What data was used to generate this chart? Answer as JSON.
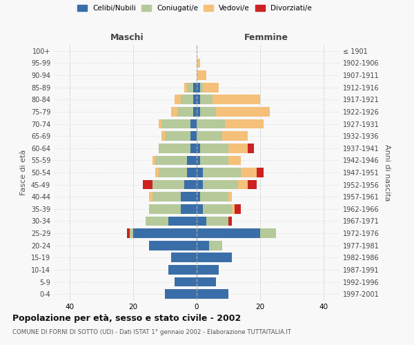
{
  "age_groups": [
    "0-4",
    "5-9",
    "10-14",
    "15-19",
    "20-24",
    "25-29",
    "30-34",
    "35-39",
    "40-44",
    "45-49",
    "50-54",
    "55-59",
    "60-64",
    "65-69",
    "70-74",
    "75-79",
    "80-84",
    "85-89",
    "90-94",
    "95-99",
    "100+"
  ],
  "birth_years": [
    "1997-2001",
    "1992-1996",
    "1987-1991",
    "1982-1986",
    "1977-1981",
    "1972-1976",
    "1967-1971",
    "1962-1966",
    "1957-1961",
    "1952-1956",
    "1947-1951",
    "1942-1946",
    "1937-1941",
    "1932-1936",
    "1927-1931",
    "1922-1926",
    "1917-1921",
    "1912-1916",
    "1907-1911",
    "1902-1906",
    "≤ 1901"
  ],
  "maschi": {
    "celibi": [
      10,
      7,
      9,
      8,
      15,
      20,
      9,
      5,
      5,
      4,
      3,
      3,
      2,
      2,
      2,
      1,
      1,
      1,
      0,
      0,
      0
    ],
    "coniugati": [
      0,
      0,
      0,
      0,
      0,
      1,
      7,
      10,
      9,
      10,
      9,
      10,
      10,
      8,
      9,
      5,
      4,
      2,
      0,
      0,
      0
    ],
    "vedovi": [
      0,
      0,
      0,
      0,
      0,
      0,
      0,
      0,
      1,
      0,
      1,
      1,
      0,
      1,
      1,
      2,
      2,
      1,
      0,
      0,
      0
    ],
    "divorziati": [
      0,
      0,
      0,
      0,
      0,
      1,
      0,
      0,
      0,
      3,
      0,
      0,
      0,
      0,
      0,
      0,
      0,
      0,
      0,
      0,
      0
    ]
  },
  "femmine": {
    "nubili": [
      10,
      6,
      7,
      11,
      4,
      20,
      3,
      2,
      1,
      2,
      2,
      1,
      1,
      0,
      0,
      1,
      1,
      1,
      0,
      0,
      0
    ],
    "coniugate": [
      0,
      0,
      0,
      0,
      4,
      5,
      7,
      9,
      9,
      11,
      12,
      9,
      9,
      8,
      9,
      5,
      4,
      1,
      0,
      0,
      0
    ],
    "vedove": [
      0,
      0,
      0,
      0,
      0,
      0,
      0,
      1,
      1,
      3,
      5,
      4,
      6,
      8,
      12,
      17,
      15,
      5,
      3,
      1,
      0
    ],
    "divorziate": [
      0,
      0,
      0,
      0,
      0,
      0,
      1,
      2,
      0,
      3,
      2,
      0,
      2,
      0,
      0,
      0,
      0,
      0,
      0,
      0,
      0
    ]
  },
  "colors": {
    "celibi": "#3a6ea8",
    "coniugati": "#b5c99a",
    "vedovi": "#f5c07a",
    "divorziati": "#cc2222"
  },
  "legend_labels": [
    "Celibi/Nubili",
    "Coniugati/e",
    "Vedovi/e",
    "Divorziati/e"
  ],
  "title": "Popolazione per età, sesso e stato civile - 2002",
  "subtitle": "COMUNE DI FORNI DI SOTTO (UD) - Dati ISTAT 1° gennaio 2002 - Elaborazione TUTTAITALIA.IT",
  "xlabel_left": "Maschi",
  "xlabel_right": "Femmine",
  "ylabel_left": "Fasce di età",
  "ylabel_right": "Anni di nascita",
  "xlim": 45,
  "bg_color": "#f8f8f8",
  "grid_color": "#cccccc"
}
